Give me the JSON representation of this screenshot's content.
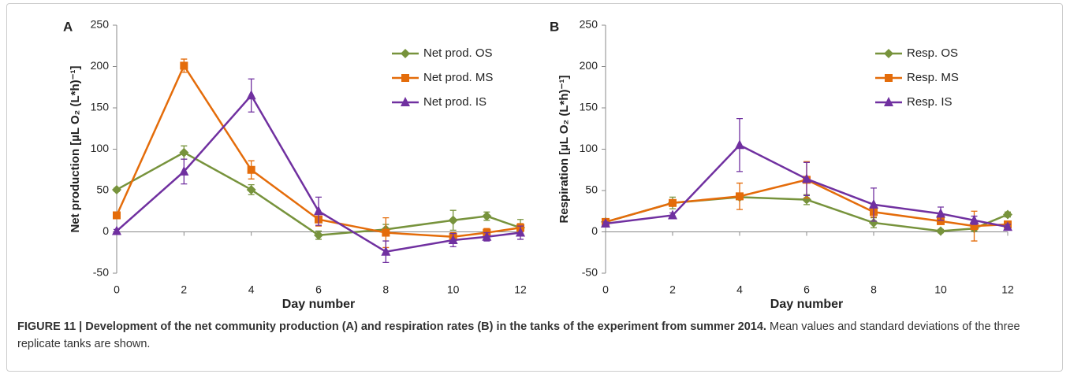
{
  "charts": [
    {
      "type": "line",
      "panel_label": "A",
      "x_label": "Day number",
      "y_label": "Net production [µL O₂ (L*h)⁻¹]",
      "x": [
        0,
        2,
        4,
        6,
        8,
        10,
        11,
        12
      ],
      "xlim": [
        0,
        12
      ],
      "xticks": [
        0,
        2,
        4,
        6,
        8,
        10,
        12
      ],
      "ylim": [
        -50,
        250
      ],
      "yticks": [
        -50,
        0,
        50,
        100,
        150,
        200,
        250
      ],
      "grid": false,
      "legend": "upper right",
      "series": [
        {
          "name": "Net prod. OS",
          "color": "#77933c",
          "marker": "diamond",
          "values": [
            51,
            96,
            51,
            -4,
            3,
            14,
            19,
            5
          ],
          "errors": [
            2,
            8,
            6,
            5,
            6,
            12,
            5,
            10
          ]
        },
        {
          "name": "Net prod. MS",
          "color": "#e46c0a",
          "marker": "square",
          "values": [
            20,
            201,
            75,
            15,
            -1,
            -6,
            -1,
            5
          ],
          "errors": [
            4,
            8,
            11,
            8,
            18,
            5,
            5,
            5
          ]
        },
        {
          "name": "Net prod. IS",
          "color": "#7030a0",
          "marker": "triangle",
          "values": [
            1,
            73,
            165,
            25,
            -24,
            -10,
            -6,
            -1
          ],
          "errors": [
            2,
            15,
            20,
            17,
            13,
            8,
            5,
            8
          ]
        }
      ]
    },
    {
      "type": "line",
      "panel_label": "B",
      "x_label": "Day number",
      "y_label": "Respiration [µL O₂ (L*h)⁻¹]",
      "x": [
        0,
        2,
        4,
        6,
        8,
        10,
        11,
        12
      ],
      "xlim": [
        0,
        12
      ],
      "xticks": [
        0,
        2,
        4,
        6,
        8,
        10,
        12
      ],
      "ylim": [
        -50,
        250
      ],
      "yticks": [
        -50,
        0,
        50,
        100,
        150,
        200,
        250
      ],
      "grid": false,
      "legend": "upper right",
      "series": [
        {
          "name": "Resp. OS",
          "color": "#77933c",
          "marker": "diamond",
          "values": [
            12,
            35,
            42,
            39,
            11,
            1,
            4,
            21
          ],
          "errors": [
            2,
            7,
            3,
            6,
            6,
            2,
            3,
            3
          ]
        },
        {
          "name": "Resp. MS",
          "color": "#e46c0a",
          "marker": "square",
          "values": [
            12,
            35,
            43,
            63,
            24,
            13,
            7,
            9
          ],
          "errors": [
            2,
            4,
            16,
            22,
            6,
            4,
            18,
            4
          ]
        },
        {
          "name": "Resp. IS",
          "color": "#7030a0",
          "marker": "triangle",
          "values": [
            10,
            20,
            105,
            64,
            33,
            22,
            14,
            6
          ],
          "errors": [
            2,
            3,
            32,
            20,
            20,
            8,
            5,
            3
          ]
        }
      ]
    }
  ],
  "caption": {
    "bold": "FIGURE 11 | Development of the net community production (A) and respiration rates (B) in the tanks of the experiment from summer 2014.",
    "text": "Mean values and standard deviations of the three replicate tanks are shown."
  }
}
